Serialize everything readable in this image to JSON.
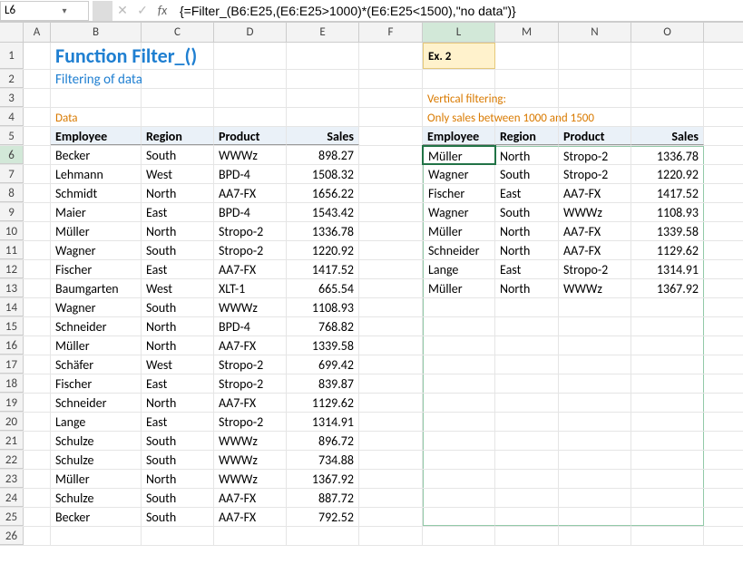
{
  "nameBox": "L6",
  "formula": "{=Filter_(B6:E25,(E6:E25>1000)*(E6:E25<1500),\"no data\")}",
  "title": "Function Filter_()",
  "subtitle": "Filtering of data",
  "dataLabel": "Data",
  "ex2Label": "Ex. 2",
  "verticalFilterLabel": "Vertical filtering:",
  "onlySalesLabel": "Only sales between 1000 and 1500",
  "colHeaders": [
    "A",
    "B",
    "C",
    "D",
    "E",
    "F",
    "L",
    "M",
    "N",
    "O"
  ],
  "colWidths": {
    "A": 30,
    "B": 100,
    "C": 80,
    "D": 80,
    "E": 80,
    "F": 70,
    "L": 80,
    "M": 70,
    "N": 80,
    "O": 80
  },
  "tableHeaders": {
    "employee": "Employee",
    "region": "Region",
    "product": "Product",
    "sales": "Sales"
  },
  "leftData": [
    [
      "Becker",
      "South",
      "WWWz",
      "898.27"
    ],
    [
      "Lehmann",
      "West",
      "BPD-4",
      "1508.32"
    ],
    [
      "Schmidt",
      "North",
      "AA7-FX",
      "1656.22"
    ],
    [
      "Maier",
      "East",
      "BPD-4",
      "1543.42"
    ],
    [
      "Müller",
      "North",
      "Stropo-2",
      "1336.78"
    ],
    [
      "Wagner",
      "South",
      "Stropo-2",
      "1220.92"
    ],
    [
      "Fischer",
      "East",
      "AA7-FX",
      "1417.52"
    ],
    [
      "Baumgarten",
      "West",
      "XLT-1",
      "665.54"
    ],
    [
      "Wagner",
      "South",
      "WWWz",
      "1108.93"
    ],
    [
      "Schneider",
      "North",
      "BPD-4",
      "768.82"
    ],
    [
      "Müller",
      "North",
      "AA7-FX",
      "1339.58"
    ],
    [
      "Schäfer",
      "West",
      "Stropo-2",
      "699.42"
    ],
    [
      "Fischer",
      "East",
      "Stropo-2",
      "839.87"
    ],
    [
      "Schneider",
      "North",
      "AA7-FX",
      "1129.62"
    ],
    [
      "Lange",
      "East",
      "Stropo-2",
      "1314.91"
    ],
    [
      "Schulze",
      "South",
      "WWWz",
      "896.72"
    ],
    [
      "Schulze",
      "South",
      "WWWz",
      "734.88"
    ],
    [
      "Müller",
      "North",
      "WWWz",
      "1367.92"
    ],
    [
      "Schulze",
      "South",
      "AA7-FX",
      "887.72"
    ],
    [
      "Becker",
      "South",
      "AA7-FX",
      "792.52"
    ]
  ],
  "rightData": [
    [
      "Müller",
      "North",
      "Stropo-2",
      "1336.78"
    ],
    [
      "Wagner",
      "South",
      "Stropo-2",
      "1220.92"
    ],
    [
      "Fischer",
      "East",
      "AA7-FX",
      "1417.52"
    ],
    [
      "Wagner",
      "South",
      "WWWz",
      "1108.93"
    ],
    [
      "Müller",
      "North",
      "AA7-FX",
      "1339.58"
    ],
    [
      "Schneider",
      "North",
      "AA7-FX",
      "1129.62"
    ],
    [
      "Lange",
      "East",
      "Stropo-2",
      "1314.91"
    ],
    [
      "Müller",
      "North",
      "WWWz",
      "1367.92"
    ]
  ],
  "activeRow": 6,
  "activeColIndex": 6,
  "icons": {
    "cancel": "✕",
    "confirm": "✓",
    "fx": "fx",
    "drop": "▾"
  },
  "colors": {
    "accent_blue": "#1f7fd1",
    "accent_orange": "#d97a00",
    "selection_green": "#217346",
    "spill_border": "#92c9a8",
    "ex2_bg": "#fff2cc",
    "ex2_border": "#e5c97a",
    "header_blue": "#eaf1f8",
    "gridline": "#e5e5e5"
  }
}
